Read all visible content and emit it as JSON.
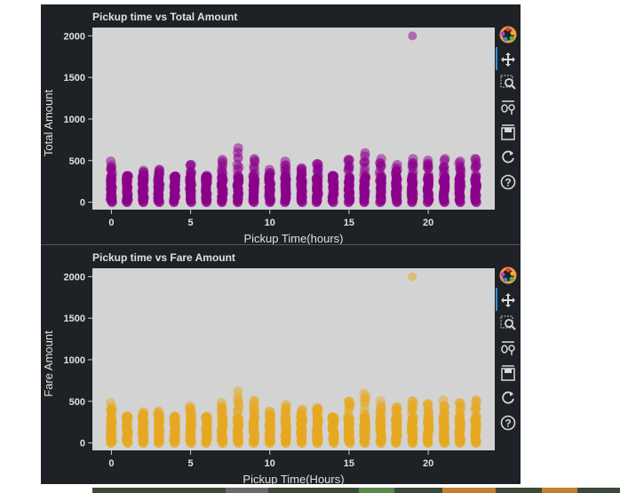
{
  "chart_data": [
    {
      "type": "scatter",
      "title": "Pickup time vs Total Amount",
      "xlabel": "Pickup Time(hours)",
      "ylabel": "Total Amount",
      "xlim": [
        -1.2,
        24.2
      ],
      "ylim": [
        -90,
        2100
      ],
      "xticks": [
        0,
        5,
        10,
        15,
        20
      ],
      "yticks": [
        0,
        500,
        1000,
        1500,
        2000
      ],
      "color": "#8b008b",
      "grid": false,
      "series": [
        {
          "hours": [
            0,
            1,
            2,
            3,
            4,
            5,
            6,
            7,
            8,
            9,
            10,
            11,
            12,
            13,
            14,
            15,
            16,
            17,
            18,
            19,
            20,
            21,
            22,
            23
          ],
          "max_values": [
            490,
            310,
            380,
            390,
            300,
            450,
            290,
            510,
            650,
            520,
            390,
            490,
            410,
            460,
            310,
            510,
            590,
            520,
            450,
            520,
            500,
            520,
            490,
            520
          ],
          "outliers": [
            {
              "x": 19,
              "y": 2000
            }
          ]
        }
      ]
    },
    {
      "type": "scatter",
      "title": "Pickup time vs Fare Amount",
      "xlabel": "Pickup Time(Hours)",
      "ylabel": "Fare Amount",
      "xlim": [
        -1.2,
        24.2
      ],
      "ylim": [
        -90,
        2100
      ],
      "xticks": [
        0,
        5,
        10,
        15,
        20
      ],
      "yticks": [
        0,
        500,
        1000,
        1500,
        2000
      ],
      "color": "#e6a820",
      "grid": false,
      "series": [
        {
          "hours": [
            0,
            1,
            2,
            3,
            4,
            5,
            6,
            7,
            8,
            9,
            10,
            11,
            12,
            13,
            14,
            15,
            16,
            17,
            18,
            19,
            20,
            21,
            22,
            23
          ],
          "max_values": [
            480,
            300,
            370,
            380,
            290,
            440,
            290,
            480,
            620,
            510,
            380,
            460,
            400,
            420,
            300,
            500,
            590,
            500,
            430,
            500,
            470,
            510,
            480,
            510
          ],
          "outliers": [
            {
              "x": 19,
              "y": 2000
            }
          ]
        }
      ]
    }
  ],
  "toolbar": {
    "icons": [
      "bokeh-logo-icon",
      "pan-icon",
      "box-zoom-icon",
      "wheel-zoom-icon",
      "save-icon",
      "reset-icon",
      "help-icon"
    ]
  },
  "colors": {
    "panel_bg": "#1e2125",
    "plot_bg": "#d3d3d3",
    "text": "#e0e0e0"
  }
}
